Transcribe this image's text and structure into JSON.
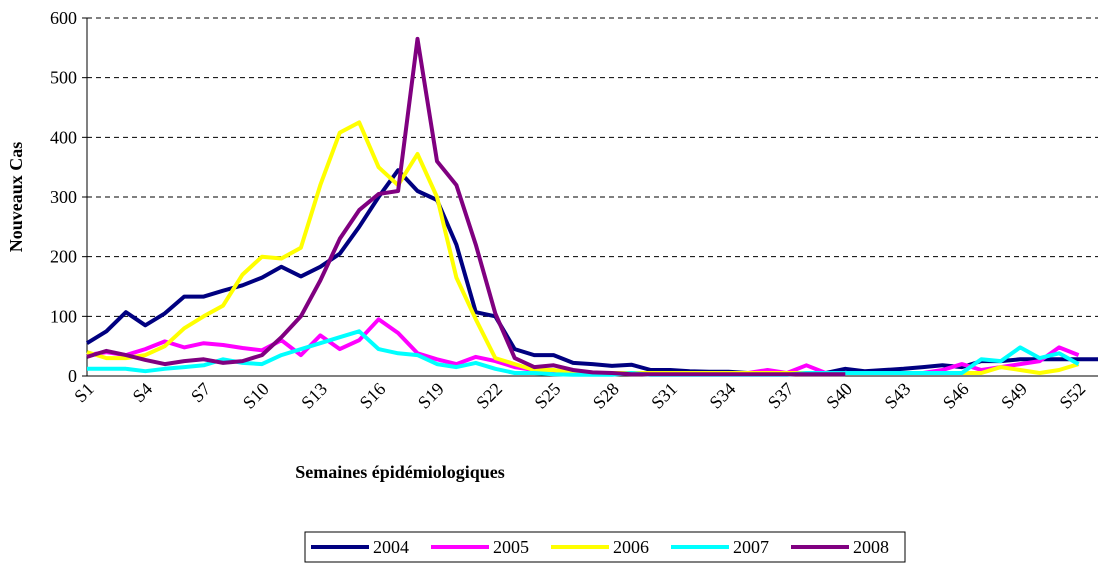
{
  "chart_data": {
    "type": "line",
    "x_label": "Semaines épidémiologiques",
    "y_label": "Nouveaux Cas",
    "categories": [
      "S1",
      null,
      null,
      "S4",
      null,
      null,
      "S7",
      null,
      null,
      "S10",
      null,
      null,
      "S13",
      null,
      null,
      "S16",
      null,
      null,
      "S19",
      null,
      null,
      "S22",
      null,
      null,
      "S25",
      null,
      null,
      "S28",
      null,
      null,
      "S31",
      null,
      null,
      "S34",
      null,
      null,
      "S37",
      null,
      null,
      "S40",
      null,
      null,
      "S43",
      null,
      null,
      "S46",
      null,
      null,
      "S49",
      null,
      null,
      "S52",
      null
    ],
    "ylim": [
      0,
      600
    ],
    "yticks": [
      0,
      100,
      200,
      300,
      400,
      500,
      600
    ],
    "grid": true,
    "series": [
      {
        "name": "2004",
        "color": "#000080",
        "values": [
          55,
          75,
          107,
          85,
          105,
          133,
          133,
          143,
          152,
          165,
          183,
          167,
          183,
          205,
          250,
          300,
          345,
          310,
          295,
          220,
          107,
          100,
          45,
          35,
          35,
          22,
          20,
          17,
          19,
          10,
          10,
          8,
          7,
          7,
          5,
          5,
          3,
          5,
          5,
          12,
          8,
          10,
          12,
          15,
          18,
          15,
          25,
          25,
          28,
          28,
          28,
          28,
          28
        ]
      },
      {
        "name": "2005",
        "color": "#ff00ff",
        "values": [
          35,
          40,
          35,
          45,
          58,
          48,
          55,
          52,
          47,
          43,
          60,
          35,
          68,
          45,
          60,
          95,
          72,
          38,
          28,
          20,
          32,
          25,
          15,
          10,
          8,
          5,
          5,
          5,
          5,
          5,
          5,
          5,
          5,
          5,
          5,
          10,
          5,
          18,
          5,
          5,
          5,
          5,
          5,
          5,
          10,
          20,
          10,
          15,
          20,
          25,
          48,
          35,
          null
        ]
      },
      {
        "name": "2006",
        "color": "#ffff00",
        "values": [
          40,
          30,
          30,
          35,
          50,
          80,
          100,
          118,
          170,
          200,
          197,
          215,
          320,
          408,
          425,
          350,
          320,
          372,
          300,
          165,
          95,
          30,
          20,
          10,
          10,
          5,
          5,
          5,
          5,
          5,
          5,
          5,
          5,
          5,
          5,
          5,
          5,
          5,
          5,
          5,
          5,
          5,
          5,
          5,
          5,
          5,
          5,
          15,
          10,
          5,
          10,
          20,
          null
        ]
      },
      {
        "name": "2007",
        "color": "#00ffff",
        "values": [
          12,
          12,
          12,
          8,
          12,
          15,
          18,
          28,
          22,
          20,
          35,
          45,
          55,
          65,
          75,
          45,
          38,
          35,
          20,
          15,
          22,
          12,
          5,
          5,
          3,
          2,
          2,
          2,
          5,
          2,
          2,
          2,
          2,
          2,
          2,
          2,
          2,
          5,
          5,
          5,
          5,
          5,
          5,
          5,
          5,
          5,
          28,
          25,
          48,
          30,
          38,
          20,
          null
        ]
      },
      {
        "name": "2008",
        "color": "#800080",
        "values": [
          32,
          42,
          35,
          27,
          20,
          25,
          28,
          22,
          25,
          35,
          65,
          100,
          160,
          230,
          278,
          305,
          310,
          565,
          360,
          320,
          220,
          105,
          30,
          15,
          18,
          10,
          6,
          5,
          3,
          3,
          3,
          3,
          3,
          3,
          3,
          3,
          3,
          3,
          3,
          3,
          null,
          null,
          null,
          null,
          null,
          null,
          null,
          null,
          null,
          null,
          null,
          null,
          null
        ]
      }
    ],
    "legend": "bottom"
  }
}
